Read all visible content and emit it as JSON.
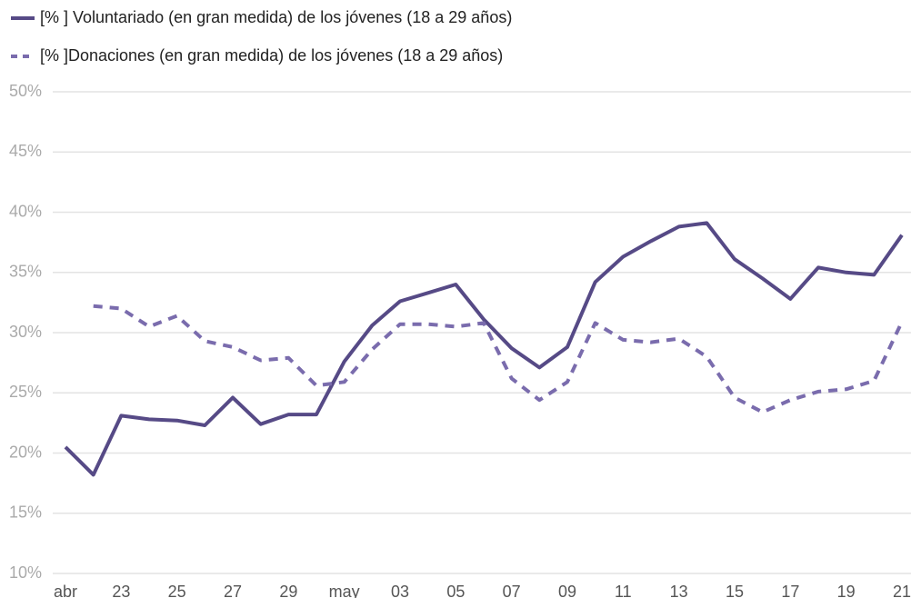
{
  "chart_data": {
    "type": "line",
    "categories": [
      "abr",
      null,
      "23",
      null,
      "25",
      null,
      "27",
      null,
      "29",
      null,
      "may",
      null,
      "03",
      null,
      "05",
      null,
      "07",
      null,
      "09",
      null,
      "11",
      null,
      "13",
      null,
      "15",
      null,
      "17",
      null,
      "19",
      null,
      "21"
    ],
    "series": [
      {
        "name": "[% ] Voluntariado (en gran medida) de los jóvenes (18 a 29 años)",
        "color": "#564a86",
        "dash": false,
        "values": [
          20.5,
          18.2,
          23.1,
          22.8,
          22.7,
          22.3,
          24.6,
          22.4,
          23.2,
          23.2,
          27.6,
          30.6,
          32.6,
          33.3,
          34.0,
          31.1,
          28.7,
          27.1,
          28.8,
          34.2,
          36.3,
          37.6,
          38.8,
          39.1,
          36.1,
          34.5,
          32.8,
          35.4,
          35.0,
          34.8,
          38.1
        ]
      },
      {
        "name": "[% ]Donaciones (en gran medida) de los jóvenes (18 a 29 años)",
        "color": "#7a6cad",
        "dash": true,
        "values": [
          null,
          32.2,
          32.0,
          30.5,
          31.4,
          29.3,
          28.8,
          27.7,
          27.9,
          25.6,
          25.9,
          28.6,
          30.7,
          30.7,
          30.5,
          30.8,
          26.2,
          24.4,
          25.9,
          30.8,
          29.4,
          29.2,
          29.5,
          28.0,
          24.6,
          23.4,
          24.4,
          25.1,
          25.3,
          26.0,
          30.9
        ]
      }
    ],
    "ylim": [
      10,
      50
    ],
    "yticks": [
      {
        "value": 10,
        "label": "10%"
      },
      {
        "value": 15,
        "label": "15%"
      },
      {
        "value": 20,
        "label": "20%"
      },
      {
        "value": 25,
        "label": "25%"
      },
      {
        "value": 30,
        "label": "30%"
      },
      {
        "value": 35,
        "label": "35%"
      },
      {
        "value": 40,
        "label": "40%"
      },
      {
        "value": 45,
        "label": "45%"
      },
      {
        "value": 50,
        "label": "50%"
      }
    ],
    "grid": true,
    "legend": "top"
  }
}
